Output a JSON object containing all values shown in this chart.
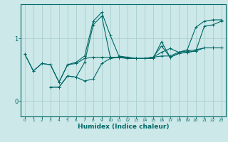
{
  "xlabel": "Humidex (Indice chaleur)",
  "ylabel": "",
  "bg_color": "#cce8e8",
  "line_color": "#006868",
  "grid_color": "#aacece",
  "xlim": [
    -0.5,
    23.5
  ],
  "ylim": [
    -0.25,
    1.55
  ],
  "yticks": [
    0,
    1
  ],
  "xticks": [
    0,
    1,
    2,
    3,
    4,
    5,
    6,
    7,
    8,
    9,
    10,
    11,
    12,
    13,
    14,
    15,
    16,
    17,
    18,
    19,
    20,
    21,
    22,
    23
  ],
  "series": [
    {
      "x": [
        0,
        1,
        2,
        3,
        4,
        5,
        6,
        7,
        8,
        9,
        10,
        11,
        12,
        13,
        14,
        15,
        16,
        17,
        18,
        19,
        20,
        21,
        22,
        23
      ],
      "y": [
        0.75,
        0.48,
        0.6,
        0.58,
        0.3,
        0.58,
        0.62,
        0.72,
        1.28,
        1.42,
        1.05,
        0.72,
        0.7,
        0.68,
        0.68,
        0.7,
        0.78,
        0.84,
        0.78,
        0.82,
        1.18,
        1.28,
        1.3,
        1.3
      ]
    },
    {
      "x": [
        0,
        1,
        2,
        3,
        4,
        5,
        6,
        7,
        8,
        9,
        10,
        11,
        12,
        13,
        14,
        15,
        16,
        17,
        18,
        19,
        20,
        21,
        22,
        23
      ],
      "y": [
        0.75,
        0.48,
        0.6,
        0.58,
        0.3,
        0.58,
        0.6,
        0.68,
        0.7,
        0.7,
        0.7,
        0.7,
        0.7,
        0.68,
        0.68,
        0.7,
        0.72,
        0.72,
        0.78,
        0.8,
        0.82,
        0.85,
        0.85,
        0.85
      ]
    },
    {
      "x": [
        3,
        4,
        5,
        6,
        7,
        8,
        9,
        10,
        11,
        12,
        13,
        14,
        15,
        16,
        17,
        18,
        19,
        20,
        21,
        22,
        23
      ],
      "y": [
        0.22,
        0.22,
        0.4,
        0.38,
        0.32,
        0.35,
        0.6,
        0.68,
        0.7,
        0.68,
        0.68,
        0.68,
        0.7,
        0.88,
        0.7,
        0.76,
        0.78,
        0.8,
        0.85,
        0.85,
        0.85
      ]
    },
    {
      "x": [
        3,
        4,
        5,
        6,
        7,
        8,
        9,
        10,
        11,
        12,
        13,
        14,
        15,
        16,
        17,
        18,
        19,
        20,
        21,
        22,
        23
      ],
      "y": [
        0.22,
        0.22,
        0.4,
        0.38,
        0.62,
        1.22,
        1.36,
        0.7,
        0.7,
        0.68,
        0.68,
        0.68,
        0.68,
        0.95,
        0.7,
        0.76,
        0.78,
        0.8,
        1.2,
        1.22,
        1.28
      ]
    }
  ]
}
